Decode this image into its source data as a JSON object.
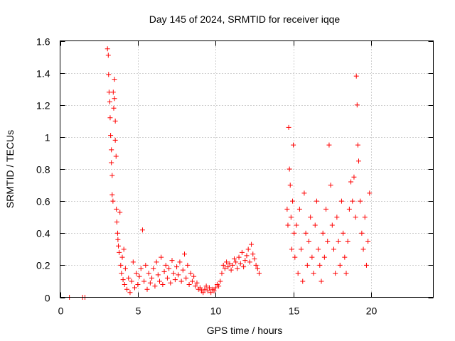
{
  "chart_data": {
    "type": "scatter",
    "title": "Day 145 of 2024, SRMTID for receiver iqqe",
    "xlabel": "GPS time / hours",
    "ylabel": "SRMTID / TECUs",
    "xlim": [
      0,
      24
    ],
    "ylim": [
      0,
      1.6
    ],
    "xticks": [
      0,
      5,
      10,
      15,
      20
    ],
    "xtick_labels": [
      "0",
      "5",
      "10",
      "15",
      "20"
    ],
    "yticks": [
      0,
      0.2,
      0.4,
      0.6,
      0.8,
      1.0,
      1.2,
      1.4,
      1.6
    ],
    "ytick_labels": [
      "0",
      "0.2",
      "0.4",
      "0.6",
      "0.8",
      "1",
      "1.2",
      "1.4",
      "1.6"
    ],
    "grid": true,
    "marker": "+",
    "color": "#ff0000",
    "series": [
      {
        "name": "SRMTID",
        "x": [
          0.6,
          1.45,
          1.6,
          3.05,
          3.1,
          3.12,
          3.15,
          3.2,
          3.22,
          3.25,
          3.3,
          3.3,
          3.35,
          3.35,
          3.4,
          3.42,
          3.45,
          3.5,
          3.5,
          3.55,
          3.55,
          3.6,
          3.62,
          3.65,
          3.7,
          3.72,
          3.75,
          3.8,
          3.85,
          3.9,
          3.95,
          4.0,
          4.05,
          4.1,
          4.15,
          4.2,
          4.3,
          4.4,
          4.5,
          4.6,
          4.7,
          4.8,
          4.9,
          5.0,
          5.1,
          5.2,
          5.3,
          5.4,
          5.5,
          5.6,
          5.7,
          5.8,
          5.9,
          6.0,
          6.1,
          6.2,
          6.3,
          6.4,
          6.5,
          6.6,
          6.7,
          6.8,
          6.9,
          7.0,
          7.1,
          7.2,
          7.3,
          7.4,
          7.5,
          7.6,
          7.7,
          7.8,
          7.9,
          8.0,
          8.1,
          8.2,
          8.3,
          8.4,
          8.5,
          8.6,
          8.7,
          8.8,
          8.9,
          9.0,
          9.1,
          9.2,
          9.3,
          9.4,
          9.5,
          9.6,
          9.7,
          9.8,
          9.9,
          10.0,
          10.1,
          10.2,
          10.3,
          10.4,
          10.5,
          10.6,
          10.7,
          10.8,
          10.9,
          11.0,
          11.1,
          11.2,
          11.3,
          11.4,
          11.5,
          11.6,
          11.7,
          11.8,
          11.9,
          12.0,
          12.1,
          12.2,
          12.3,
          12.4,
          12.5,
          12.6,
          12.7,
          12.8,
          14.6,
          14.65,
          14.7,
          14.75,
          14.8,
          14.85,
          14.9,
          14.95,
          15.0,
          15.05,
          15.1,
          15.2,
          15.3,
          15.4,
          15.5,
          15.6,
          15.7,
          15.8,
          15.9,
          16.0,
          16.1,
          16.2,
          16.3,
          16.4,
          16.5,
          16.6,
          16.7,
          16.8,
          16.9,
          17.0,
          17.1,
          17.2,
          17.3,
          17.4,
          17.5,
          17.6,
          17.7,
          17.8,
          17.9,
          18.0,
          18.1,
          18.2,
          18.3,
          18.4,
          18.5,
          18.6,
          18.7,
          18.8,
          18.9,
          19.0,
          19.05,
          19.1,
          19.15,
          19.2,
          19.3,
          19.4,
          19.5,
          19.6,
          19.7,
          19.8,
          19.9
        ],
        "y": [
          0.0,
          0.0,
          0.0,
          1.55,
          1.51,
          1.39,
          1.28,
          1.22,
          1.12,
          1.01,
          0.92,
          0.84,
          0.76,
          0.64,
          0.6,
          1.28,
          1.18,
          1.36,
          1.24,
          1.1,
          0.98,
          0.88,
          0.55,
          0.47,
          0.4,
          0.36,
          0.32,
          0.28,
          0.53,
          0.2,
          0.15,
          0.25,
          0.11,
          0.3,
          0.08,
          0.18,
          0.05,
          0.12,
          0.03,
          0.1,
          0.22,
          0.06,
          0.15,
          0.08,
          0.13,
          0.18,
          0.42,
          0.1,
          0.2,
          0.05,
          0.15,
          0.09,
          0.12,
          0.18,
          0.07,
          0.22,
          0.14,
          0.1,
          0.25,
          0.08,
          0.16,
          0.2,
          0.12,
          0.18,
          0.09,
          0.23,
          0.15,
          0.11,
          0.19,
          0.14,
          0.22,
          0.1,
          0.17,
          0.27,
          0.12,
          0.2,
          0.08,
          0.15,
          0.1,
          0.13,
          0.07,
          0.09,
          0.05,
          0.06,
          0.04,
          0.03,
          0.05,
          0.07,
          0.04,
          0.06,
          0.03,
          0.05,
          0.04,
          0.06,
          0.08,
          0.07,
          0.1,
          0.15,
          0.2,
          0.18,
          0.22,
          0.19,
          0.21,
          0.17,
          0.2,
          0.24,
          0.22,
          0.18,
          0.25,
          0.21,
          0.28,
          0.19,
          0.23,
          0.26,
          0.3,
          0.22,
          0.33,
          0.27,
          0.24,
          0.2,
          0.18,
          0.15,
          0.55,
          0.45,
          1.06,
          0.8,
          0.7,
          0.5,
          0.3,
          0.6,
          0.95,
          0.4,
          0.25,
          0.45,
          0.15,
          0.55,
          0.3,
          0.1,
          0.65,
          0.4,
          0.2,
          0.35,
          0.5,
          0.25,
          0.15,
          0.45,
          0.6,
          0.3,
          0.2,
          0.1,
          0.4,
          0.25,
          0.55,
          0.35,
          0.95,
          0.7,
          0.45,
          0.3,
          0.15,
          0.5,
          0.35,
          0.2,
          0.6,
          0.4,
          0.25,
          0.15,
          0.35,
          0.55,
          0.72,
          0.6,
          0.75,
          0.5,
          1.38,
          1.2,
          0.95,
          0.85,
          0.6,
          0.4,
          0.3,
          0.5,
          0.2,
          0.35,
          0.65
        ]
      }
    ]
  }
}
